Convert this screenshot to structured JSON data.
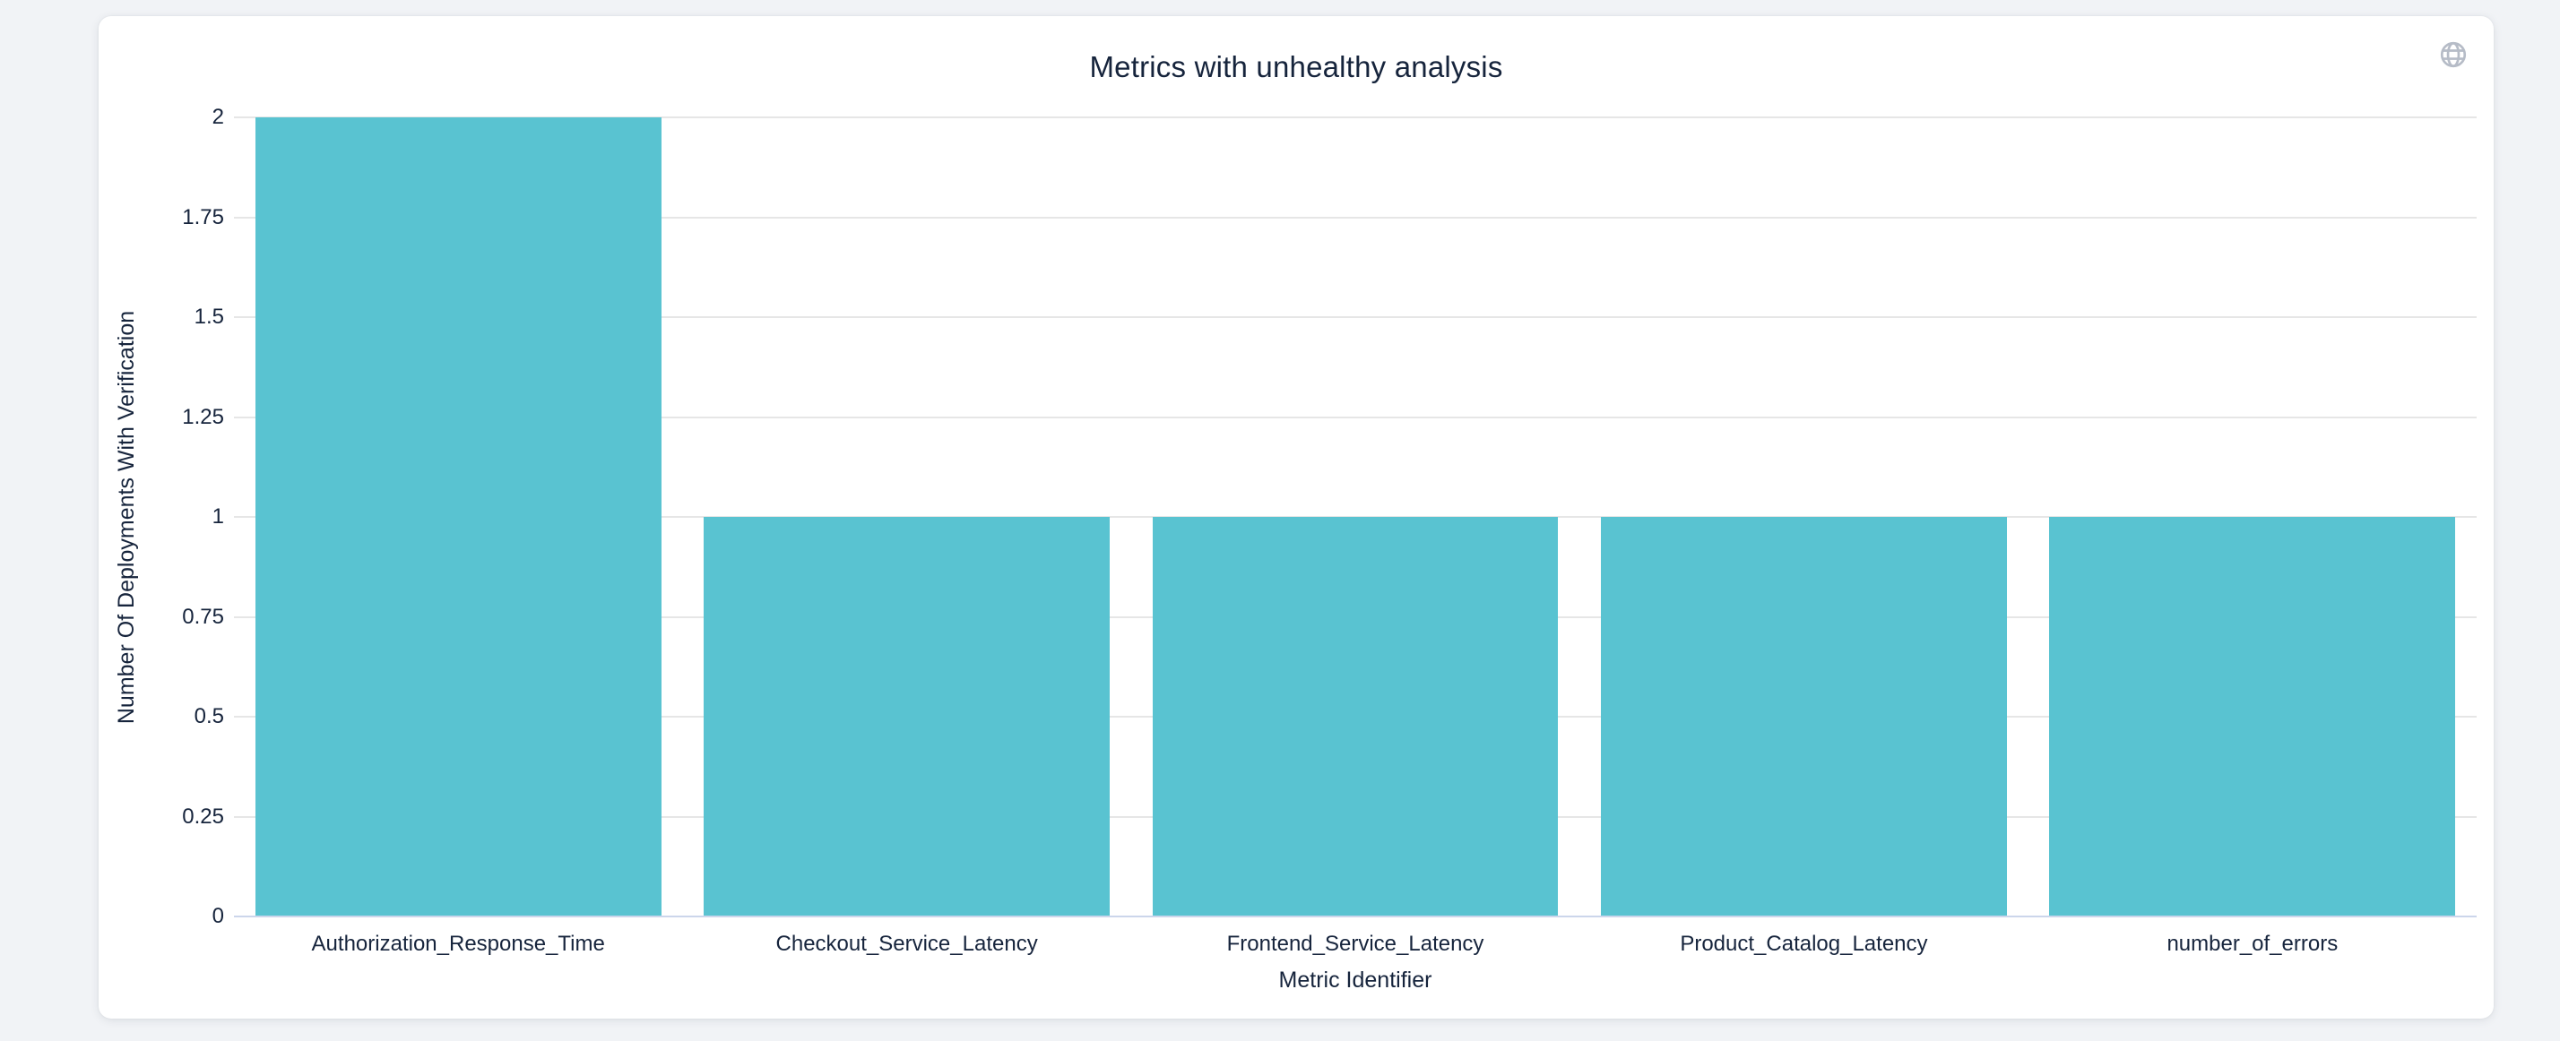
{
  "header": {
    "title": "Metrics with unhealthy analysis"
  },
  "toolbar": {
    "globe_icon": "globe-icon"
  },
  "theme": {
    "page_bg": "#f1f3f6",
    "card_bg": "#ffffff",
    "text_color": "#16243c",
    "icon_color": "#b6bcc7"
  },
  "chart_data": {
    "type": "bar",
    "title": "Metrics with unhealthy analysis",
    "categories": [
      "Authorization_Response_Time",
      "Checkout_Service_Latency",
      "Frontend_Service_Latency",
      "Product_Catalog_Latency",
      "number_of_errors"
    ],
    "values": [
      2,
      1,
      1,
      1,
      1
    ],
    "xlabel": "Metric Identifier",
    "ylabel": "Number Of Deployments With Verification",
    "ylim": [
      0,
      2
    ],
    "yticks": [
      0,
      0.25,
      0.5,
      0.75,
      1,
      1.25,
      1.5,
      1.75,
      2
    ],
    "ytick_labels": [
      "0",
      "0.25",
      "0.5",
      "0.75",
      "1",
      "1.25",
      "1.5",
      "1.75",
      "2"
    ],
    "bar_color": "#59c3d1",
    "gridline_color": "#e6e6e6",
    "axis_line_color": "#ccd6eb",
    "grid": true,
    "legend": "none"
  }
}
